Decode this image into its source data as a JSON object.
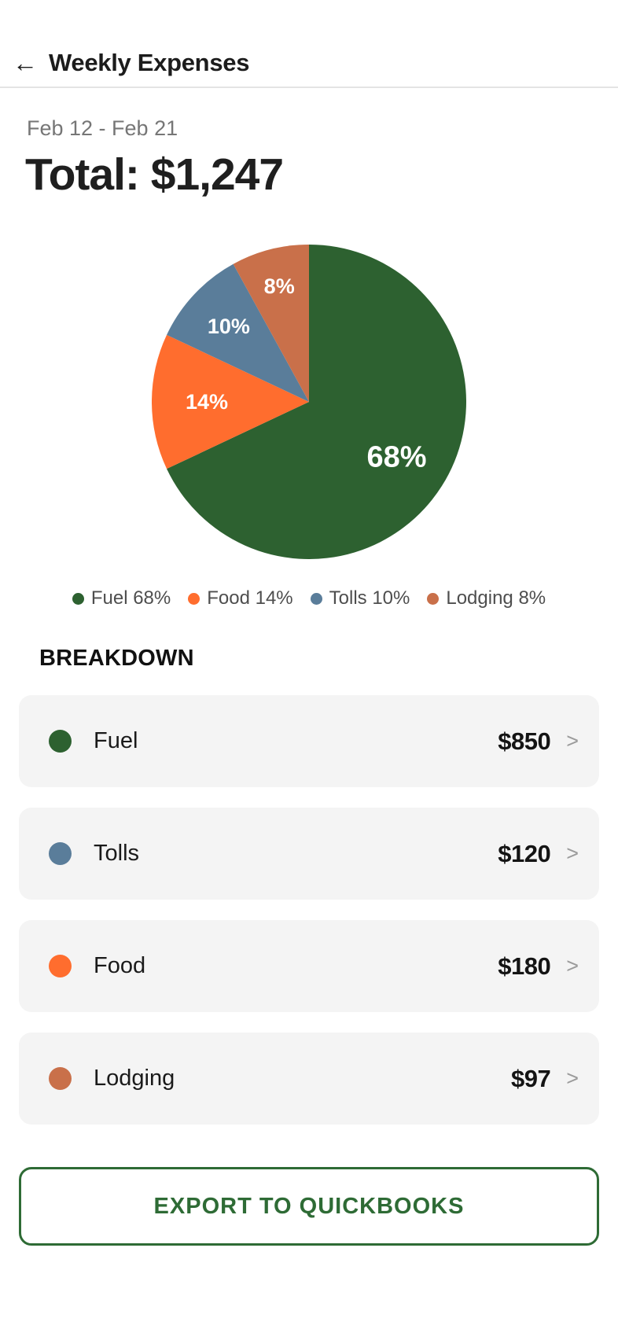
{
  "header": {
    "back_icon": "←",
    "title": "Weekly Expenses"
  },
  "summary": {
    "date_range": "Feb 12 - Feb 21",
    "total_label": "Total: $1,247"
  },
  "chart_data": {
    "type": "pie",
    "title": "Weekly Expenses breakdown",
    "start_angle_deg": 0,
    "direction": "clockwise",
    "legend_position": "bottom",
    "slices": [
      {
        "label": "Fuel",
        "pct": 68,
        "value_label": "68%",
        "color": "#2d6130",
        "label_r": 0.66
      },
      {
        "label": "Food",
        "pct": 14,
        "value_label": "14%",
        "color": "#ff6d2e",
        "label_r": 0.65
      },
      {
        "label": "Tolls",
        "pct": 10,
        "value_label": "10%",
        "color": "#5a7d9a",
        "label_r": 0.7
      },
      {
        "label": "Lodging",
        "pct": 8,
        "value_label": "8%",
        "color": "#c9704a",
        "label_r": 0.76
      }
    ]
  },
  "breakdown": {
    "heading": "BREAKDOWN",
    "chevron_icon": ">",
    "items": [
      {
        "name": "Fuel",
        "amount": "$850",
        "color": "#2d6130"
      },
      {
        "name": "Tolls",
        "amount": "$120",
        "color": "#5a7d9a"
      },
      {
        "name": "Food",
        "amount": "$180",
        "color": "#ff6d2e"
      },
      {
        "name": "Lodging",
        "amount": "$97",
        "color": "#c9704a"
      }
    ]
  },
  "actions": {
    "export_label": "EXPORT TO QUICKBOOKS",
    "accent_color": "#2e6b35"
  }
}
